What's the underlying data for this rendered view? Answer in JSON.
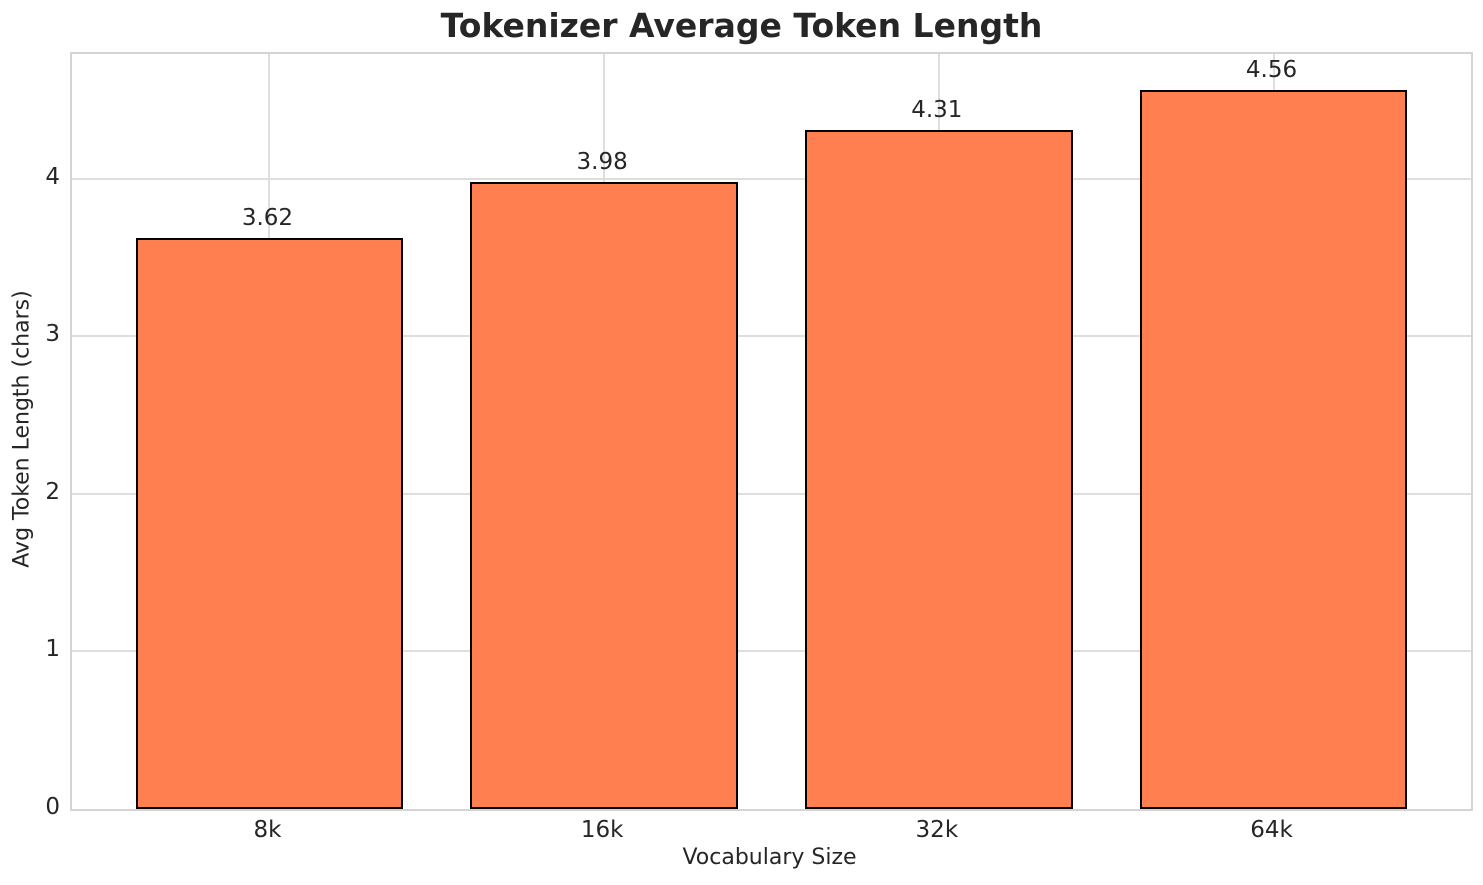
{
  "chart_data": {
    "type": "bar",
    "title": "Tokenizer Average Token Length",
    "xlabel": "Vocabulary Size",
    "ylabel": "Avg Token Length (chars)",
    "categories": [
      "8k",
      "16k",
      "32k",
      "64k"
    ],
    "values": [
      3.62,
      3.98,
      4.31,
      4.56
    ],
    "value_labels": [
      "3.62",
      "3.98",
      "4.31",
      "4.56"
    ],
    "yticks": [
      0,
      1,
      2,
      3,
      4
    ],
    "ylim": [
      0,
      4.79
    ],
    "xlim": [
      -0.59,
      3.59
    ],
    "bar_width": 0.8,
    "grid": true,
    "legend": "none",
    "colors": {
      "bar_fill": "#FF7F50",
      "bar_edge": "#000000",
      "grid": "#DEDEDE",
      "spine": "#D4D4D4",
      "text": "#262626",
      "title": "#262626",
      "background": "#FFFFFF"
    }
  }
}
